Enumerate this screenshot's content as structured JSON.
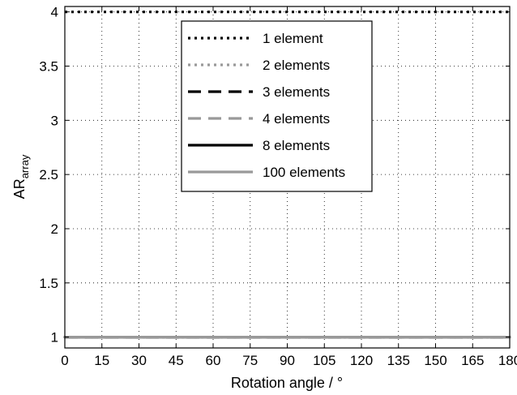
{
  "chart_data": {
    "type": "line",
    "title": "",
    "xlabel": "Rotation angle / °",
    "ylabel_main": "AR",
    "ylabel_sub": "array",
    "xlim": [
      0,
      180
    ],
    "ylim": [
      0.9,
      4.05
    ],
    "xticks": [
      0,
      15,
      30,
      45,
      60,
      75,
      90,
      105,
      120,
      135,
      150,
      165,
      180
    ],
    "xtick_labels": [
      "0",
      "15",
      "30",
      "45",
      "60",
      "75",
      "90",
      "105",
      "120",
      "135",
      "150",
      "165",
      "180"
    ],
    "yticks": [
      1,
      1.5,
      2,
      2.5,
      3,
      3.5,
      4
    ],
    "ytick_labels": [
      "1",
      "1.5",
      "2",
      "2.5",
      "3",
      "3.5",
      "4"
    ],
    "grid": true,
    "legend_position": "top-center",
    "x_step_deg": 1,
    "series": [
      {
        "name": "1 element",
        "color": "#000000",
        "dash": "dotted",
        "n": 1
      },
      {
        "name": "2 elements",
        "color": "#999999",
        "dash": "dotted",
        "n": 2
      },
      {
        "name": "3 elements",
        "color": "#000000",
        "dash": "dashed",
        "n": 3
      },
      {
        "name": "4 elements",
        "color": "#999999",
        "dash": "dashed",
        "n": 4
      },
      {
        "name": "8 elements",
        "color": "#000000",
        "dash": "solid",
        "n": 8
      },
      {
        "name": "100 elements",
        "color": "#999999",
        "dash": "solid",
        "n": 100
      }
    ]
  }
}
